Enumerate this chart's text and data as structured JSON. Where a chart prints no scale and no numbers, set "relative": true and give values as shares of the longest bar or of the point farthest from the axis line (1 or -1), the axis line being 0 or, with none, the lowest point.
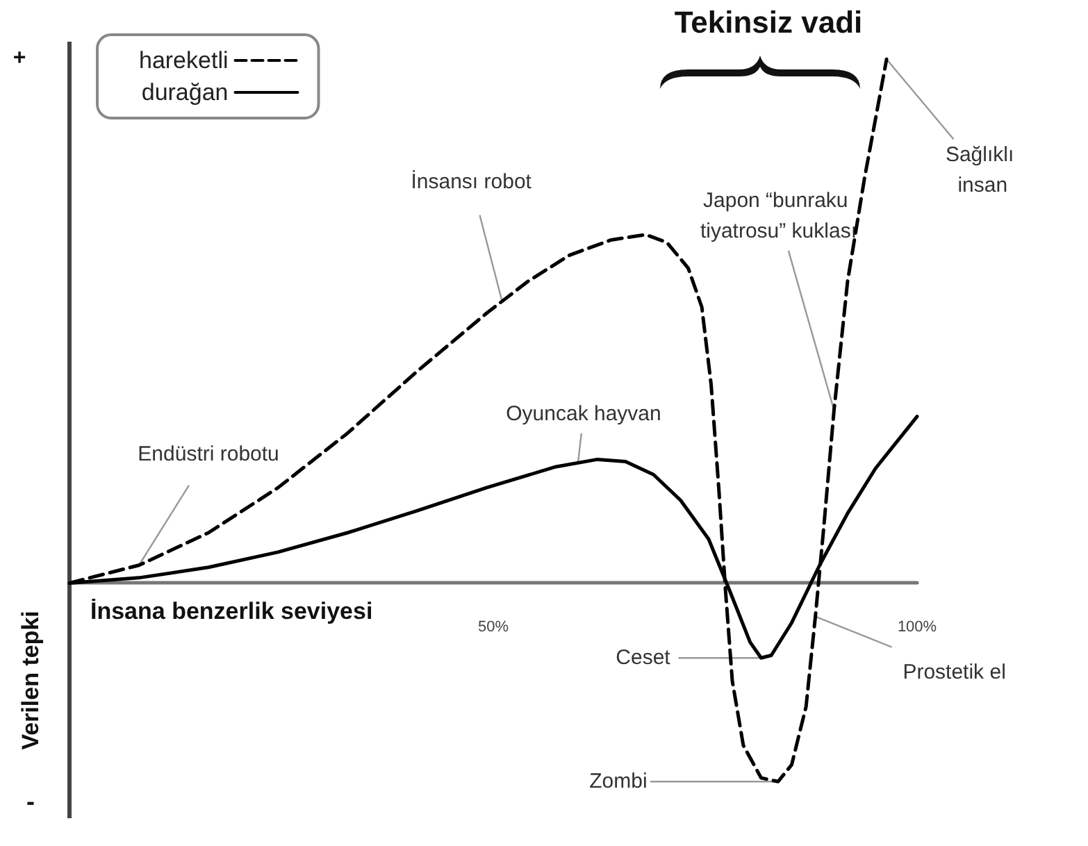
{
  "chart_data": {
    "type": "line",
    "relative": true,
    "xlabel": "İnsana benzerlik seviyesi",
    "ylabel": "Verilen tepki",
    "legend": "top left",
    "marker": "none",
    "grid": false,
    "xlim": [
      0,
      100
    ],
    "xticks": [
      {
        "value": 50,
        "label": "50%"
      },
      {
        "value": 100,
        "label": "100%"
      }
    ],
    "series": [
      {
        "name": "hareketli",
        "color": "#000000",
        "line_style": "dashed",
        "x": [
          0,
          8.2,
          16.4,
          24.6,
          32.8,
          41,
          49.2,
          54.1,
          59,
          63.9,
          68,
          70.5,
          73,
          74.6,
          75.7,
          76.6,
          77.4,
          78.2,
          79.5,
          81.6,
          83.6,
          85.2,
          86.9,
          88,
          89,
          90.2,
          91.8,
          93.8,
          96.4
        ],
        "values": [
          0,
          0.034,
          0.096,
          0.182,
          0.286,
          0.404,
          0.515,
          0.576,
          0.626,
          0.655,
          0.665,
          0.65,
          0.601,
          0.527,
          0.379,
          0.182,
          -0.015,
          -0.187,
          -0.31,
          -0.372,
          -0.379,
          -0.347,
          -0.236,
          -0.064,
          0.108,
          0.33,
          0.576,
          0.773,
          1
        ]
      },
      {
        "name": "durağan",
        "color": "#000000",
        "line_style": "solid",
        "x": [
          0,
          8.2,
          16.4,
          24.6,
          32.8,
          41,
          49.2,
          57.4,
          62.3,
          65.6,
          68.9,
          72.1,
          75.4,
          77.9,
          80.3,
          81.6,
          82.8,
          85.2,
          88.5,
          91.8,
          95.1,
          100
        ],
        "values": [
          0,
          0.01,
          0.03,
          0.059,
          0.096,
          0.138,
          0.182,
          0.222,
          0.236,
          0.232,
          0.207,
          0.158,
          0.084,
          -0.015,
          -0.113,
          -0.143,
          -0.138,
          -0.076,
          0.034,
          0.133,
          0.219,
          0.318
        ]
      }
    ],
    "annotations": [
      "+",
      "-",
      "Tekinsiz vadi",
      {
        "text": "Endüstri robotu",
        "x": 8.2,
        "y": 0.034
      },
      {
        "text": "İnsansı robot",
        "x": 51,
        "y": 0.54
      },
      {
        "text": "Oyuncak hayvan",
        "x": 60,
        "y": 0.23
      },
      {
        "text": "Japon “bunraku tiyatrosu” kuklası",
        "x": 90.2,
        "y": 0.33
      },
      {
        "text": "Sağlıklı insan",
        "x": 96.4,
        "y": 1
      },
      {
        "text": "Ceset",
        "x": 81.6,
        "y": -0.143
      },
      {
        "text": "Zombi",
        "x": 83.6,
        "y": -0.379
      },
      {
        "text": "Prostetik el",
        "x": 88,
        "y": -0.064
      }
    ]
  }
}
